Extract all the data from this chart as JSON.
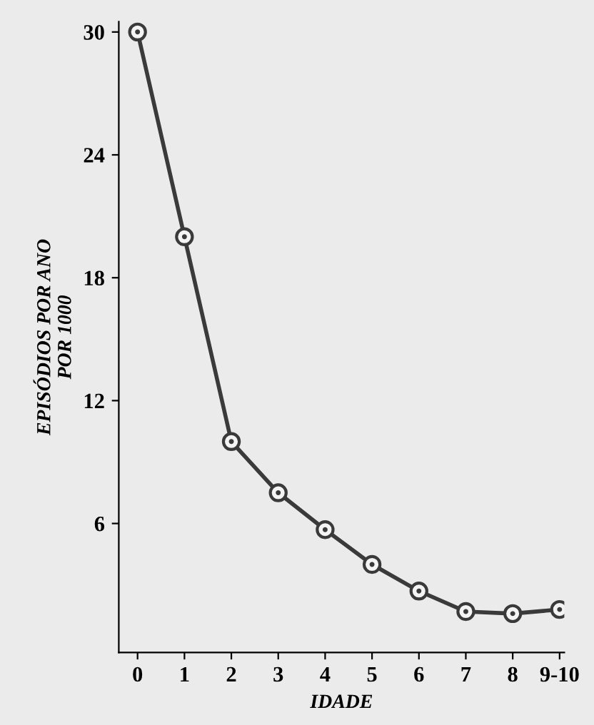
{
  "chart_data": {
    "type": "line",
    "xlabel": "IDADE",
    "ylabel": "EPISÓDIOS POR ANO\nPOR 1000",
    "categories": [
      "0",
      "1",
      "2",
      "3",
      "4",
      "5",
      "6",
      "7",
      "8",
      "9-10"
    ],
    "series": [
      {
        "color": "#3a3a3a",
        "values": [
          30,
          20,
          10,
          7.5,
          5.7,
          4.0,
          2.7,
          1.7,
          1.6,
          1.8
        ]
      }
    ],
    "ylim": [
      -0.3,
      30.5
    ],
    "yticks": [
      6,
      12,
      18,
      24,
      30
    ],
    "marker": "circle",
    "line_style": "solid",
    "grid": false,
    "legend": false
  }
}
